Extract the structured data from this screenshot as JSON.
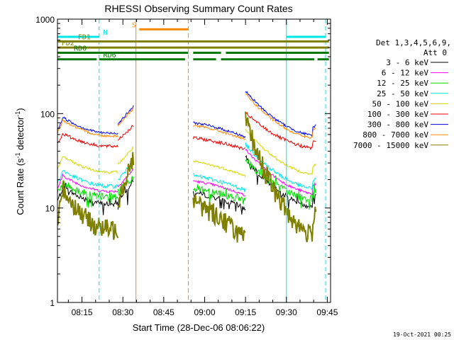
{
  "chart_data": {
    "type": "line",
    "title": "RHESSI Observing Summary Count Rates",
    "xlabel": "Start Time (28-Dec-06 08:06:22)",
    "ylabel_main": "Count Rate (s",
    "ylabel_sup1": "-1",
    "ylabel_mid": " detector",
    "ylabel_sup2": "-1",
    "ylabel_end": ")",
    "yscale": "log",
    "ylim": [
      1,
      1000
    ],
    "xlim_minutes": [
      8.1,
      9.77
    ],
    "xtick_labels": [
      {
        "label": "08:15",
        "t": 8.25
      },
      {
        "label": "08:30",
        "t": 8.5
      },
      {
        "label": "08:45",
        "t": 8.75
      },
      {
        "label": "09:00",
        "t": 9.0
      },
      {
        "label": "09:15",
        "t": 9.25
      },
      {
        "label": "09:30",
        "t": 9.5
      },
      {
        "label": "09:45",
        "t": 9.75
      }
    ],
    "ytick_labels": [
      {
        "label": "1",
        "v": 1
      },
      {
        "label": "10",
        "v": 10
      },
      {
        "label": "100",
        "v": 100
      },
      {
        "label": "1000",
        "v": 1000
      }
    ],
    "legend_header": [
      "Det 1,3,4,5,6,9,",
      "Att 0"
    ],
    "legend_position": "right",
    "series": [
      {
        "name": "3 - 6 keV",
        "color": "#000000",
        "base": 11,
        "amp": 0.55,
        "noise": 0.06,
        "spikes": 0.12
      },
      {
        "name": "6 - 12 keV",
        "color": "#ff00ff",
        "base": 15,
        "amp": 0.5,
        "noise": 0.03,
        "spikes": 0
      },
      {
        "name": "12 - 25 keV",
        "color": "#00dd00",
        "base": 13,
        "amp": 0.45,
        "noise": 0.1,
        "spikes": 0.15
      },
      {
        "name": "25 - 50 keV",
        "color": "#00e5e5",
        "base": 17,
        "amp": 0.5,
        "noise": 0.05,
        "spikes": 0
      },
      {
        "name": "50 - 100 keV",
        "color": "#d8d800",
        "base": 24,
        "amp": 0.5,
        "noise": 0.03,
        "spikes": 0
      },
      {
        "name": "100 - 300 keV",
        "color": "#ee0000",
        "base": 45,
        "amp": 0.4,
        "noise": 0.04,
        "spikes": 0
      },
      {
        "name": "300 - 800 keV",
        "color": "#0000ee",
        "base": 62,
        "amp": 0.5,
        "noise": 0.03,
        "spikes": 0
      },
      {
        "name": "800 - 7000 keV",
        "color": "#ff8800",
        "base": 58,
        "amp": 0.5,
        "noise": 0.03,
        "spikes": 0
      },
      {
        "name": "7000 - 15000 keV",
        "color": "#808000",
        "base": 6,
        "amp": 1.3,
        "noise": 0.25,
        "spikes": 0
      }
    ],
    "segments": [
      {
        "start": 8.1,
        "end": 8.34
      },
      {
        "start": 8.34,
        "end": 8.47
      },
      {
        "start": 8.47,
        "end": 8.565
      },
      {
        "start": 8.93,
        "end": 9.25
      },
      {
        "start": 9.25,
        "end": 9.68
      }
    ],
    "flags": [
      {
        "label": "N",
        "color": "#00e5e5",
        "t_start": 8.1,
        "t_end": 8.355,
        "level": 650,
        "label_t": 8.38
      },
      {
        "label": "N",
        "color": "#00e5e5",
        "t_start": 9.5,
        "t_end": 9.74,
        "level": 650,
        "label_t": null
      },
      {
        "label": "S",
        "color": "#ff8800",
        "t_start": 8.6,
        "t_end": 8.9,
        "level": 780,
        "label_t": 8.555
      },
      {
        "label": "FD1",
        "color": "#808000",
        "t_start": 8.1,
        "t_end": 9.76,
        "level": 580,
        "label_t": 8.225
      },
      {
        "label": "FD2",
        "color": "#808000",
        "t_start": 8.1,
        "t_end": 9.76,
        "level": 500,
        "label_t": 8.125
      },
      {
        "label": "RD0",
        "color": "#007700",
        "t_start": 8.1,
        "t_end": 8.9,
        "level": 440,
        "label_t": 8.2
      },
      {
        "label": "RD0",
        "color": "#007700",
        "t_start": 8.93,
        "t_end": 9.1,
        "level": 440,
        "label_t": null
      },
      {
        "label": "RD0",
        "color": "#007700",
        "t_start": 9.13,
        "t_end": 9.76,
        "level": 440,
        "label_t": null
      },
      {
        "label": "RD6",
        "color": "#007700",
        "t_start": 8.1,
        "t_end": 8.34,
        "level": 375,
        "label_t": null
      },
      {
        "label": "RD6",
        "color": "#007700",
        "t_start": 8.355,
        "t_end": 8.88,
        "level": 375,
        "label_t": 8.38
      },
      {
        "label": "RD6",
        "color": "#007700",
        "t_start": 8.93,
        "t_end": 9.07,
        "level": 375,
        "label_t": null
      },
      {
        "label": "RD6",
        "color": "#007700",
        "t_start": 9.1,
        "t_end": 9.67,
        "level": 375,
        "label_t": null
      },
      {
        "label": "RD6",
        "color": "#007700",
        "t_start": 9.69,
        "t_end": 9.76,
        "level": 375,
        "label_t": null
      }
    ],
    "vlines": [
      {
        "t": 8.1,
        "color": "#00e5e5",
        "dashed": false
      },
      {
        "t": 8.355,
        "color": "#00e5e5",
        "dashed": true
      },
      {
        "t": 8.58,
        "color": "#ff8800",
        "dashed": false
      },
      {
        "t": 8.9,
        "color": "#ff8800",
        "dashed": true
      },
      {
        "t": 9.5,
        "color": "#00e5e5",
        "dashed": false
      },
      {
        "t": 9.74,
        "color": "#00e5e5",
        "dashed": true
      }
    ],
    "timestamp": "19-Oct-2021 00:25"
  }
}
